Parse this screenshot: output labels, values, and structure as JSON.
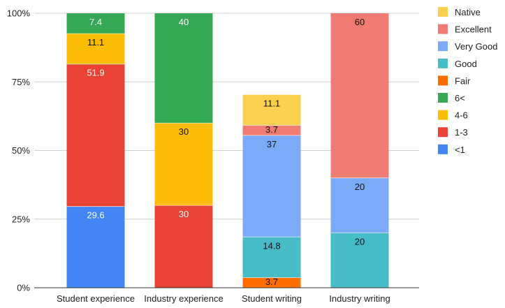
{
  "chart_data": {
    "type": "bar",
    "stacked": true,
    "normalized": true,
    "title": "",
    "xlabel": "",
    "ylabel": "",
    "ylim": [
      0,
      100
    ],
    "y_ticks": [
      "0%",
      "25%",
      "50%",
      "75%",
      "100%"
    ],
    "grid": true,
    "legend_position": "right",
    "categories": [
      "Student experience",
      "Industry experience",
      "Student writing",
      "Industry writing"
    ],
    "series": [
      {
        "name": "<1",
        "color": "#4285F4",
        "label_color": "#ffffff",
        "values": [
          29.6,
          null,
          null,
          null
        ]
      },
      {
        "name": "1-3",
        "color": "#EA4335",
        "label_color": "#ffffff",
        "values": [
          51.9,
          30,
          null,
          null
        ]
      },
      {
        "name": "4-6",
        "color": "#FBBC04",
        "label_color": "#111111",
        "values": [
          11.1,
          30,
          null,
          null
        ]
      },
      {
        "name": "6<",
        "color": "#34A853",
        "label_color": "#ffffff",
        "values": [
          7.4,
          40,
          null,
          null
        ]
      },
      {
        "name": "Fair",
        "color": "#FF6D01",
        "label_color": "#111111",
        "values": [
          null,
          null,
          3.7,
          null
        ]
      },
      {
        "name": "Good",
        "color": "#46BDC6",
        "label_color": "#111111",
        "values": [
          null,
          null,
          14.8,
          20
        ]
      },
      {
        "name": "Very Good",
        "color": "#7BAAF7",
        "label_color": "#111111",
        "values": [
          null,
          null,
          37,
          20
        ]
      },
      {
        "name": "Excellent",
        "color": "#F07B72",
        "label_color": "#111111",
        "values": [
          null,
          null,
          3.7,
          60
        ]
      },
      {
        "name": "Native",
        "color": "#FCD04F",
        "label_color": "#111111",
        "values": [
          null,
          null,
          11.1,
          null
        ]
      }
    ],
    "legend_order": [
      "Native",
      "Excellent",
      "Very Good",
      "Good",
      "Fair",
      "6<",
      "4-6",
      "1-3",
      "<1"
    ]
  }
}
